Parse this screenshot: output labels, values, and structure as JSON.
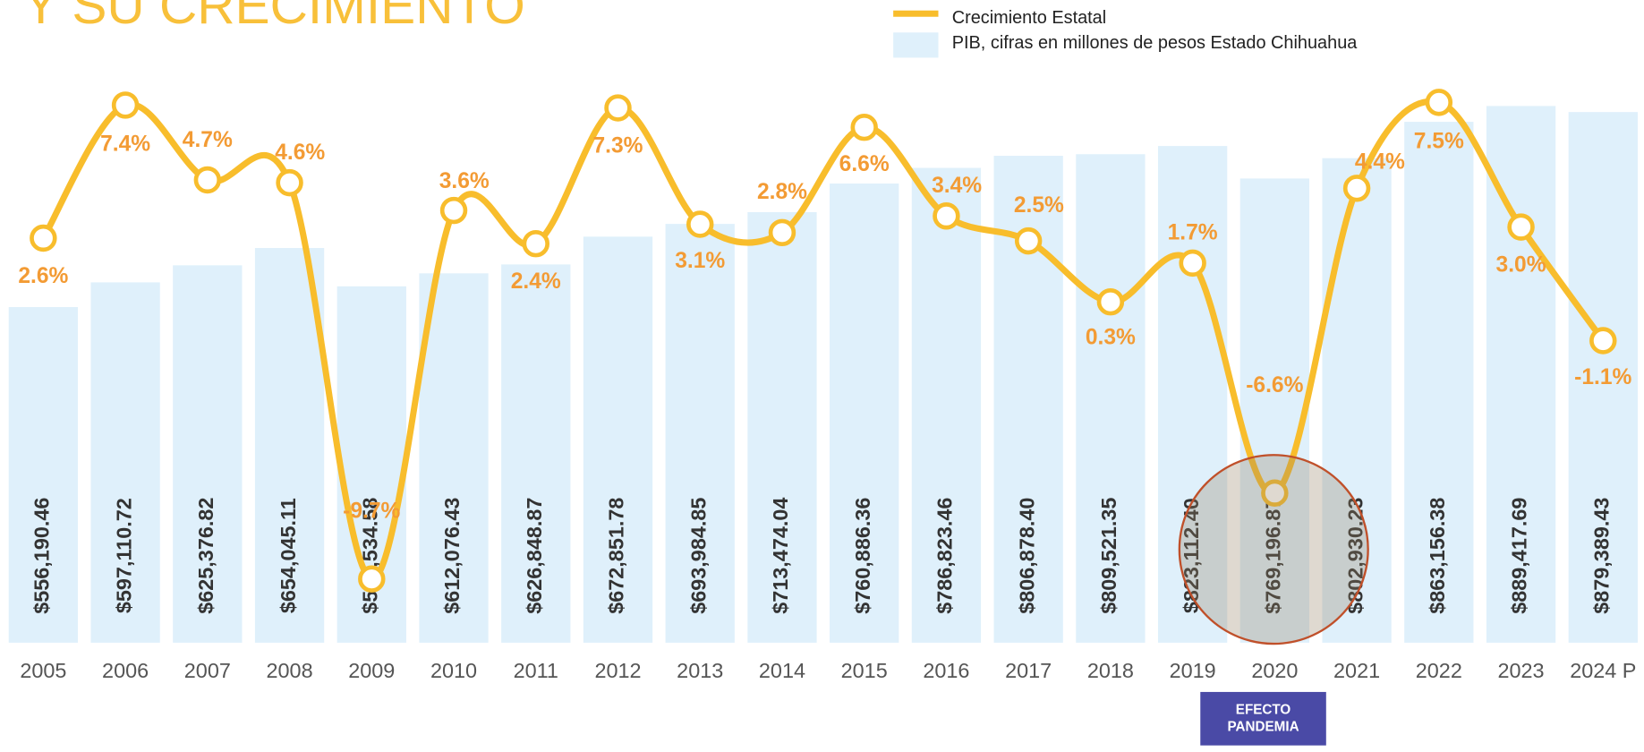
{
  "chart_data": {
    "type": "bar+line",
    "title": "Y SU CRECIMIENTO",
    "categories": [
      "2005",
      "2006",
      "2007",
      "2008",
      "2009",
      "2010",
      "2011",
      "2012",
      "2013",
      "2014",
      "2015",
      "2016",
      "2017",
      "2018",
      "2019",
      "2020",
      "2021",
      "2022",
      "2023",
      "2024 P"
    ],
    "series": [
      {
        "name": "PIB, cifras en millones de pesos Estado Chihuahua",
        "type": "bar",
        "color": "#dff0fb",
        "values": [
          556190.46,
          597110.72,
          625376.82,
          654045.11,
          590534.58,
          612076.43,
          626848.87,
          672851.78,
          693984.85,
          713474.04,
          760886.36,
          786823.46,
          806878.4,
          809521.35,
          823112.4,
          769196.87,
          802930.23,
          863156.38,
          889417.69,
          879389.43
        ],
        "value_labels": [
          "$556,190.46",
          "$597,110.72",
          "$625,376.82",
          "$654,045.11",
          "$590,534.58",
          "$612,076.43",
          "$626,848.87",
          "$672,851.78",
          "$693,984.85",
          "$713,474.04",
          "$760,886.36",
          "$786,823.46",
          "$806,878.40",
          "$809,521.35",
          "$823,112.40",
          "$769,196.87",
          "$802,930.23",
          "$863,156.38",
          "$889,417.69",
          "$879,389.43"
        ]
      },
      {
        "name": "Crecimiento Estatal",
        "type": "line",
        "axis": "y2",
        "color": "#f8bd2c",
        "values": [
          2.6,
          7.4,
          4.7,
          4.6,
          -9.7,
          3.6,
          2.4,
          7.3,
          3.1,
          2.8,
          6.6,
          3.4,
          2.5,
          0.3,
          1.7,
          -6.6,
          4.4,
          7.5,
          3.0,
          -1.1
        ],
        "value_labels": [
          "2.6%",
          "7.4%",
          "4.7%",
          "4.6%",
          "-9.7%",
          "3.6%",
          "2.4%",
          "7.3%",
          "3.1%",
          "2.8%",
          "6.6%",
          "3.4%",
          "2.5%",
          "0.3%",
          "1.7%",
          "-6.6%",
          "4.4%",
          "7.5%",
          "3.0%",
          "-1.1%"
        ]
      }
    ],
    "ylim": [
      0,
      900000
    ],
    "y2lim": [
      -12,
      7.6
    ],
    "annotation": "EFECTO PANDEMIA"
  }
}
